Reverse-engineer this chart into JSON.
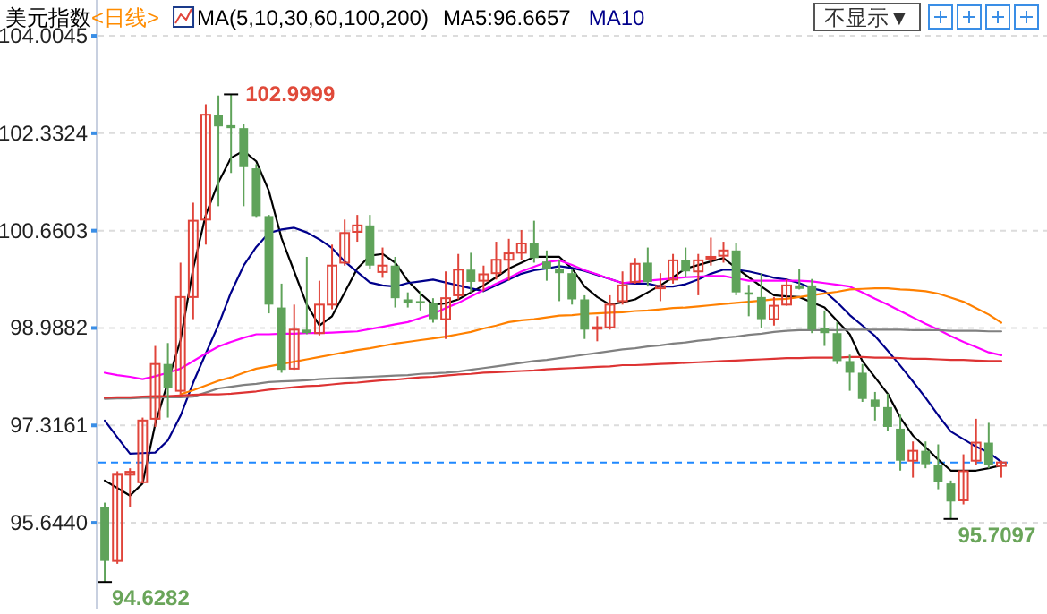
{
  "chart_data": {
    "type": "candlestick",
    "title": "美元指数",
    "subtitle": "<日线>",
    "categories": [
      null,
      null,
      null,
      null,
      null,
      null,
      null,
      null,
      null,
      null,
      null,
      null,
      null,
      null,
      null,
      null,
      null,
      null,
      null,
      null,
      null,
      null,
      null,
      null,
      null,
      null,
      null,
      null,
      null,
      null,
      null,
      null,
      null,
      null,
      null,
      null,
      null,
      null,
      null,
      null,
      null,
      null,
      null,
      null,
      null,
      null,
      null,
      null,
      null,
      null,
      null,
      null,
      null,
      null,
      null,
      null,
      null,
      null,
      null,
      null,
      null,
      null,
      null,
      null,
      null,
      null,
      null,
      null,
      null,
      null,
      null,
      null
    ],
    "ohlc": [
      [
        95.91,
        95.99,
        94.6282,
        94.99
      ],
      [
        94.99,
        96.53,
        94.94,
        96.47
      ],
      [
        96.47,
        96.58,
        95.91,
        96.52
      ],
      [
        96.34,
        97.45,
        96.32,
        97.4
      ],
      [
        97.43,
        98.68,
        97.29,
        98.37
      ],
      [
        98.37,
        98.73,
        97.45,
        97.96
      ],
      [
        97.91,
        100.11,
        97.86,
        99.52
      ],
      [
        99.52,
        101.14,
        99.14,
        100.83
      ],
      [
        100.85,
        102.83,
        100.42,
        102.65
      ],
      [
        102.65,
        102.98,
        101.08,
        102.45
      ],
      [
        102.47,
        102.9999,
        101.65,
        102.42
      ],
      [
        102.42,
        102.49,
        101.08,
        101.75
      ],
      [
        101.73,
        101.8,
        100.88,
        100.91
      ],
      [
        100.91,
        100.93,
        99.24,
        99.39
      ],
      [
        99.34,
        99.75,
        98.22,
        98.27
      ],
      [
        98.29,
        99.39,
        98.27,
        98.96
      ],
      [
        98.96,
        100.21,
        98.88,
        98.9
      ],
      [
        98.9,
        99.8,
        98.86,
        99.39
      ],
      [
        99.39,
        100.42,
        99.31,
        100.06
      ],
      [
        100.11,
        100.85,
        100.06,
        100.62
      ],
      [
        100.64,
        100.93,
        100.47,
        100.75
      ],
      [
        100.75,
        100.93,
        100.01,
        100.06
      ],
      [
        99.95,
        100.37,
        99.85,
        100.06
      ],
      [
        100.06,
        100.21,
        99.34,
        99.5
      ],
      [
        99.48,
        99.6,
        99.34,
        99.41
      ],
      [
        99.45,
        99.62,
        99.29,
        99.41
      ],
      [
        99.41,
        99.5,
        99.08,
        99.14
      ],
      [
        99.14,
        99.96,
        98.8,
        99.5
      ],
      [
        99.55,
        100.26,
        99.48,
        99.99
      ],
      [
        99.99,
        100.28,
        99.6,
        99.78
      ],
      [
        99.8,
        100.06,
        99.62,
        99.91
      ],
      [
        99.93,
        100.47,
        99.82,
        100.16
      ],
      [
        100.16,
        100.52,
        99.8,
        100.27
      ],
      [
        100.28,
        100.67,
        100.16,
        100.44
      ],
      [
        100.44,
        100.83,
        100.11,
        100.19
      ],
      [
        100.13,
        100.32,
        99.8,
        100.01
      ],
      [
        100.01,
        100.16,
        99.45,
        99.93
      ],
      [
        99.93,
        100.01,
        99.39,
        99.48
      ],
      [
        99.48,
        99.55,
        98.8,
        98.96
      ],
      [
        98.98,
        99.19,
        98.76,
        99.0
      ],
      [
        99.0,
        99.55,
        98.96,
        99.39
      ],
      [
        99.45,
        99.96,
        99.39,
        99.72
      ],
      [
        99.78,
        100.19,
        99.75,
        100.09
      ],
      [
        100.11,
        100.37,
        99.7,
        99.78
      ],
      [
        99.67,
        99.93,
        99.45,
        99.71
      ],
      [
        99.82,
        100.26,
        99.75,
        100.15
      ],
      [
        100.15,
        100.37,
        99.86,
        99.96
      ],
      [
        99.96,
        100.26,
        99.55,
        100.15
      ],
      [
        100.18,
        100.54,
        100.06,
        100.21
      ],
      [
        100.23,
        100.47,
        100.11,
        100.32
      ],
      [
        100.32,
        100.44,
        99.55,
        99.6
      ],
      [
        99.6,
        99.73,
        99.19,
        99.56
      ],
      [
        99.52,
        99.93,
        98.98,
        99.14
      ],
      [
        99.14,
        99.52,
        99.03,
        99.37
      ],
      [
        99.39,
        99.83,
        99.37,
        99.72
      ],
      [
        99.72,
        100.01,
        99.65,
        99.66
      ],
      [
        99.72,
        99.83,
        98.9,
        98.96
      ],
      [
        98.98,
        99.29,
        98.68,
        98.9
      ],
      [
        98.9,
        99.09,
        98.37,
        98.42
      ],
      [
        98.42,
        98.53,
        97.91,
        98.22
      ],
      [
        98.22,
        98.37,
        97.72,
        97.77
      ],
      [
        97.76,
        97.89,
        97.4,
        97.63
      ],
      [
        97.63,
        97.86,
        97.22,
        97.29
      ],
      [
        97.26,
        97.5,
        96.54,
        96.71
      ],
      [
        96.71,
        97.04,
        96.42,
        96.88
      ],
      [
        96.88,
        97.04,
        96.58,
        96.65
      ],
      [
        96.63,
        96.99,
        96.22,
        96.34
      ],
      [
        96.32,
        96.37,
        95.7097,
        96.01
      ],
      [
        96.03,
        96.82,
        95.96,
        96.53
      ],
      [
        96.71,
        97.43,
        96.63,
        97.02
      ],
      [
        97.02,
        97.36,
        96.58,
        96.63
      ],
      [
        96.62,
        96.71,
        96.42,
        96.68
      ]
    ],
    "series": [
      {
        "type": "line",
        "name": "MA5:96.6657",
        "color": "#000000",
        "values": [
          96.37,
          96.24,
          96.11,
          96.32,
          97.34,
          98.06,
          98.78,
          100.01,
          100.93,
          101.49,
          101.91,
          102.03,
          101.85,
          101.34,
          100.53,
          99.96,
          99.39,
          99.03,
          99.19,
          99.6,
          100.01,
          100.23,
          100.26,
          100.11,
          99.8,
          99.58,
          99.39,
          99.41,
          99.48,
          99.6,
          99.72,
          99.86,
          100.01,
          100.11,
          100.21,
          100.21,
          100.21,
          100.01,
          99.7,
          99.52,
          99.39,
          99.43,
          99.48,
          99.6,
          99.72,
          99.86,
          100.01,
          100.07,
          100.13,
          100.19,
          100.02,
          99.86,
          99.7,
          99.55,
          99.53,
          99.52,
          99.43,
          99.34,
          99.11,
          98.88,
          98.42,
          98.14,
          97.86,
          97.45,
          97.14,
          96.94,
          96.73,
          96.54,
          96.54,
          96.54,
          96.58,
          96.63
        ]
      },
      {
        "type": "line",
        "name": "MA10",
        "color": "#00008b",
        "values": [
          97.4,
          97.11,
          96.83,
          96.84,
          96.85,
          97.06,
          97.48,
          98.05,
          98.55,
          99.04,
          99.6,
          100.06,
          100.38,
          100.62,
          100.68,
          100.71,
          100.63,
          100.51,
          100.36,
          100.13,
          99.95,
          99.77,
          99.72,
          99.7,
          99.76,
          99.79,
          99.82,
          99.77,
          99.72,
          99.67,
          99.62,
          99.72,
          99.82,
          99.92,
          99.98,
          100.01,
          100.05,
          100.02,
          99.97,
          99.9,
          99.83,
          99.76,
          99.75,
          99.75,
          99.7,
          99.7,
          99.74,
          99.82,
          99.92,
          99.99,
          99.99,
          99.96,
          99.91,
          99.85,
          99.82,
          99.76,
          99.67,
          99.62,
          99.43,
          99.21,
          99.03,
          98.85,
          98.6,
          98.34,
          98.07,
          97.79,
          97.49,
          97.21,
          97.08,
          96.95,
          96.85,
          96.69
        ]
      },
      {
        "type": "line",
        "color": "#ff00ff",
        "values": [
          98.22,
          98.18,
          98.15,
          98.11,
          98.16,
          98.22,
          98.29,
          98.42,
          98.55,
          98.67,
          98.75,
          98.82,
          98.88,
          98.88,
          98.89,
          98.89,
          98.9,
          98.9,
          98.91,
          98.92,
          98.93,
          98.97,
          99.01,
          99.05,
          99.09,
          99.16,
          99.23,
          99.33,
          99.42,
          99.53,
          99.64,
          99.75,
          99.85,
          99.96,
          100.04,
          100.12,
          100.15,
          100.07,
          99.98,
          99.91,
          99.83,
          99.76,
          99.78,
          99.8,
          99.82,
          99.84,
          99.86,
          99.87,
          99.88,
          99.88,
          99.84,
          99.8,
          99.8,
          99.8,
          99.8,
          99.8,
          99.79,
          99.76,
          99.73,
          99.7,
          99.6,
          99.49,
          99.39,
          99.28,
          99.17,
          99.06,
          98.96,
          98.85,
          98.75,
          98.66,
          98.57,
          98.52
        ]
      },
      {
        "type": "line",
        "color": "#ff8000",
        "values": [
          null,
          null,
          null,
          null,
          null,
          null,
          97.85,
          97.92,
          98.0,
          98.08,
          98.14,
          98.22,
          98.29,
          98.33,
          98.37,
          98.41,
          98.45,
          98.49,
          98.53,
          98.57,
          98.61,
          98.64,
          98.68,
          98.72,
          98.75,
          98.78,
          98.81,
          98.84,
          98.88,
          98.92,
          98.98,
          99.03,
          99.09,
          99.12,
          99.14,
          99.17,
          99.2,
          99.21,
          99.23,
          99.24,
          99.25,
          99.26,
          99.28,
          99.29,
          99.31,
          99.33,
          99.34,
          99.36,
          99.38,
          99.4,
          99.42,
          99.44,
          99.46,
          99.48,
          99.49,
          99.52,
          99.55,
          99.58,
          99.61,
          99.65,
          99.66,
          99.67,
          99.67,
          99.65,
          99.64,
          99.62,
          99.58,
          99.51,
          99.44,
          99.33,
          99.22,
          99.08
        ]
      },
      {
        "type": "line",
        "color": "#808080",
        "values": [
          97.77,
          97.78,
          97.78,
          97.79,
          97.79,
          97.8,
          97.8,
          97.81,
          97.88,
          97.95,
          97.98,
          98.01,
          98.03,
          98.06,
          98.07,
          98.08,
          98.09,
          98.11,
          98.12,
          98.13,
          98.14,
          98.15,
          98.16,
          98.17,
          98.18,
          98.2,
          98.21,
          98.22,
          98.24,
          98.27,
          98.3,
          98.33,
          98.36,
          98.39,
          98.42,
          98.44,
          98.47,
          98.5,
          98.53,
          98.56,
          98.59,
          98.62,
          98.64,
          98.67,
          98.69,
          98.72,
          98.74,
          98.77,
          98.79,
          98.82,
          98.84,
          98.87,
          98.89,
          98.92,
          98.94,
          98.95,
          98.95,
          98.95,
          98.95,
          98.96,
          98.96,
          98.96,
          98.96,
          98.96,
          98.95,
          98.95,
          98.95,
          98.94,
          98.94,
          98.94,
          98.93,
          98.93
        ]
      },
      {
        "type": "line",
        "color": "#dd3333",
        "values": [
          97.79,
          97.8,
          97.8,
          97.81,
          97.82,
          97.82,
          97.83,
          97.84,
          97.85,
          97.85,
          97.86,
          97.88,
          97.9,
          97.93,
          97.95,
          97.97,
          97.99,
          98.0,
          98.02,
          98.04,
          98.05,
          98.07,
          98.09,
          98.1,
          98.12,
          98.14,
          98.15,
          98.17,
          98.19,
          98.2,
          98.22,
          98.23,
          98.24,
          98.25,
          98.26,
          98.28,
          98.29,
          98.3,
          98.31,
          98.32,
          98.33,
          98.35,
          98.35,
          98.36,
          98.37,
          98.38,
          98.39,
          98.4,
          98.41,
          98.42,
          98.43,
          98.44,
          98.45,
          98.46,
          98.47,
          98.47,
          98.48,
          98.48,
          98.48,
          98.49,
          98.49,
          98.48,
          98.48,
          98.47,
          98.46,
          98.46,
          98.45,
          98.44,
          98.44,
          98.43,
          98.42,
          98.42
        ]
      }
    ],
    "ylim": [
      94.17,
      104.62
    ],
    "yticks": [
      {
        "value": 95.644,
        "label": "95.6440"
      },
      97.3161,
      98.9882,
      100.6603,
      102.3324,
      104.0045
    ],
    "grid": "y",
    "legend": "top",
    "ref_lines": [
      {
        "axis": "y",
        "value": 96.68,
        "color": "#1e88ff",
        "line_style": "dashed"
      }
    ],
    "annotations": [
      "MA(5,10,30,60,100,200)",
      "不显示▼",
      "102.9999",
      "94.6282",
      "95.7097"
    ]
  }
}
